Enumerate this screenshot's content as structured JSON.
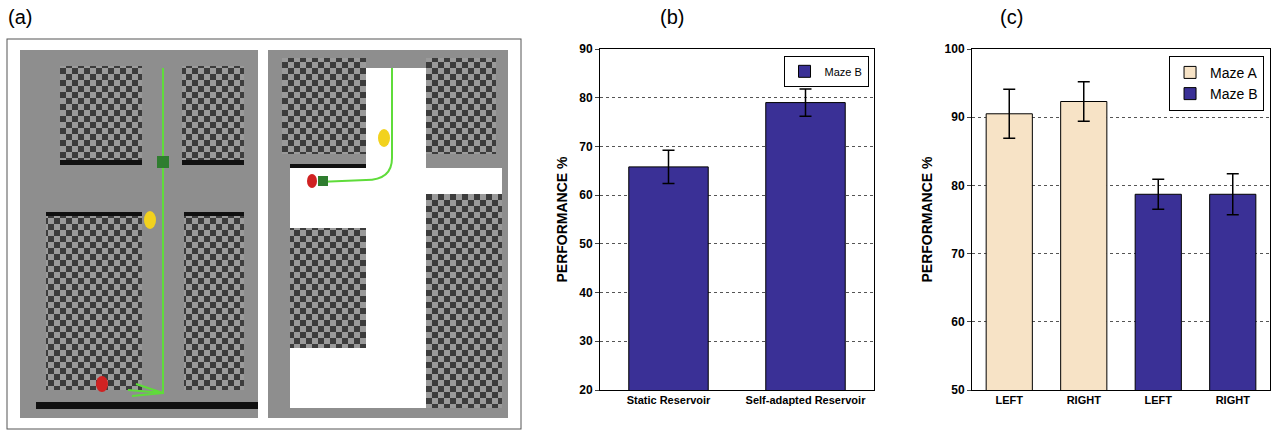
{
  "image_panel": {
    "label": "(a)"
  },
  "chart_data": [
    {
      "label": "(b)",
      "type": "bar",
      "categories": [
        "Static Reservoir",
        "Self-adapted Reservoir"
      ],
      "series": [
        {
          "name": "Maze B",
          "color": "#3a3096",
          "values": [
            65.8,
            79.0
          ],
          "errors": [
            3.4,
            2.8
          ]
        }
      ],
      "ylabel": "PERFORMANCE %",
      "ylim": [
        20,
        90
      ],
      "yticks": [
        20,
        30,
        40,
        50,
        60,
        70,
        80,
        90
      ],
      "grid": true,
      "legend": "upper right"
    },
    {
      "label": "(c)",
      "type": "bar",
      "categories": [
        "LEFT",
        "RIGHT",
        "LEFT",
        "RIGHT"
      ],
      "series": [
        {
          "name": "Maze A",
          "color": "#f7e3c6",
          "values": [
            90.5,
            92.3,
            null,
            null
          ],
          "errors": [
            3.6,
            2.9,
            null,
            null
          ]
        },
        {
          "name": "Maze B",
          "color": "#3a3096",
          "values": [
            null,
            null,
            78.7,
            78.7
          ],
          "errors": [
            null,
            null,
            2.2,
            3.0
          ]
        }
      ],
      "ylabel": "PERFORMANCE %",
      "ylim": [
        50,
        100
      ],
      "yticks": [
        50,
        60,
        70,
        80,
        90,
        100
      ],
      "grid": true,
      "legend": "upper right"
    }
  ]
}
